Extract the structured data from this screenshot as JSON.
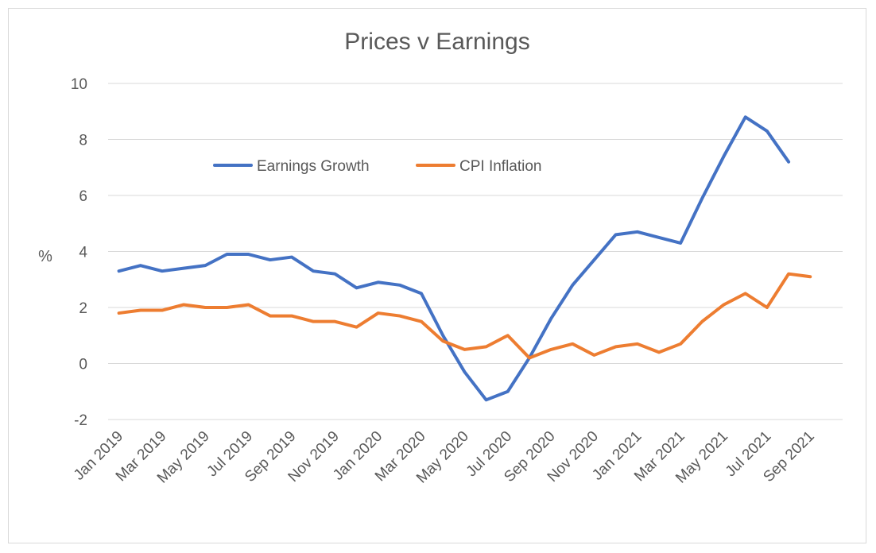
{
  "chart_data": {
    "type": "line",
    "title": "Prices v Earnings",
    "ylabel": "%",
    "xlabel": "",
    "ylim": [
      -2,
      10
    ],
    "yticks": [
      -2,
      0,
      2,
      4,
      6,
      8,
      10
    ],
    "grid": "horizontal",
    "legend_position": "top-center",
    "x": [
      "Jan 2019",
      "Feb 2019",
      "Mar 2019",
      "Apr 2019",
      "May 2019",
      "Jun 2019",
      "Jul 2019",
      "Aug 2019",
      "Sep 2019",
      "Oct 2019",
      "Nov 2019",
      "Dec 2019",
      "Jan 2020",
      "Feb 2020",
      "Mar 2020",
      "Apr 2020",
      "May 2020",
      "Jun 2020",
      "Jul 2020",
      "Aug 2020",
      "Sep 2020",
      "Oct 2020",
      "Nov 2020",
      "Dec 2020",
      "Jan 2021",
      "Feb 2021",
      "Mar 2021",
      "Apr 2021",
      "May 2021",
      "Jun 2021",
      "Jul 2021",
      "Aug 2021",
      "Sep 2021",
      "Oct 2021"
    ],
    "xtick_labels": [
      "Jan 2019",
      "Mar 2019",
      "May 2019",
      "Jul 2019",
      "Sep 2019",
      "Nov 2019",
      "Jan 2020",
      "Mar 2020",
      "May 2020",
      "Jul 2020",
      "Sep 2020",
      "Nov 2020",
      "Jan 2021",
      "Mar 2021",
      "May 2021",
      "Jul 2021",
      "Sep 2021"
    ],
    "series": [
      {
        "name": "Earnings Growth",
        "color": "#4472c4",
        "values": [
          3.3,
          3.5,
          3.3,
          3.4,
          3.5,
          3.9,
          3.9,
          3.7,
          3.8,
          3.3,
          3.2,
          2.7,
          2.9,
          2.8,
          2.5,
          1.0,
          -0.3,
          -1.3,
          -1.0,
          0.2,
          1.6,
          2.8,
          3.7,
          4.6,
          4.7,
          4.5,
          4.3,
          5.9,
          7.4,
          8.8,
          8.3,
          7.2,
          null,
          null
        ]
      },
      {
        "name": "CPI Inflation",
        "color": "#ed7d31",
        "values": [
          1.8,
          1.9,
          1.9,
          2.1,
          2.0,
          2.0,
          2.1,
          1.7,
          1.7,
          1.5,
          1.5,
          1.3,
          1.8,
          1.7,
          1.5,
          0.8,
          0.5,
          0.6,
          1.0,
          0.2,
          0.5,
          0.7,
          0.3,
          0.6,
          0.7,
          0.4,
          0.7,
          1.5,
          2.1,
          2.5,
          2.0,
          3.2,
          3.1,
          null
        ]
      }
    ]
  }
}
